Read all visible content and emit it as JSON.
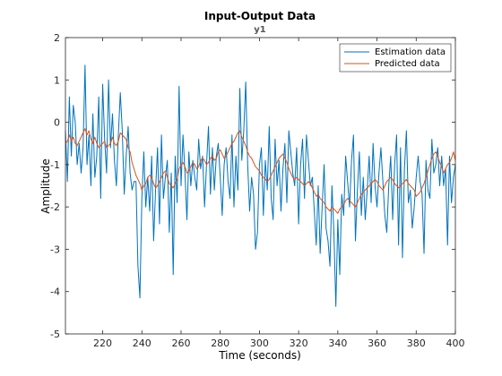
{
  "chart_data": {
    "type": "line",
    "title": "Input-Output Data",
    "subtitle": "y1",
    "xlabel": "Time (seconds)",
    "ylabel": "Amplitude",
    "xlim": [
      201,
      400
    ],
    "ylim": [
      -5,
      2
    ],
    "xticks": [
      220,
      240,
      260,
      280,
      300,
      320,
      340,
      360,
      380,
      400
    ],
    "yticks": [
      -5,
      -4,
      -3,
      -2,
      -1,
      0,
      1,
      2
    ],
    "grid": false,
    "legend_position": "top-right",
    "x": {
      "start": 201,
      "end": 400,
      "step": 1
    },
    "series": [
      {
        "name": "Estimation data",
        "color": "#0072bd",
        "values": [
          -0.2,
          -1.4,
          0.6,
          -0.8,
          0.4,
          0.0,
          -1.0,
          -0.5,
          -1.2,
          -0.6,
          1.35,
          -1.0,
          -0.3,
          -1.5,
          0.2,
          -1.3,
          -0.8,
          0.6,
          -1.8,
          0.9,
          -0.4,
          -1.2,
          1.0,
          -0.6,
          0.2,
          -0.9,
          -1.5,
          -0.3,
          0.7,
          -0.2,
          -1.7,
          -0.8,
          -0.1,
          -1.2,
          -1.6,
          -1.4,
          -1.4,
          -3.4,
          -4.15,
          -1.8,
          -0.7,
          -2.0,
          -1.3,
          -2.1,
          -0.8,
          -2.8,
          -1.6,
          -0.6,
          -2.4,
          -0.3,
          -1.8,
          -1.3,
          -0.9,
          -2.6,
          -1.2,
          -3.6,
          -0.8,
          -1.9,
          0.85,
          -1.5,
          -0.3,
          -1.2,
          -2.3,
          -0.7,
          -1.5,
          -0.9,
          -1.3,
          -1.6,
          -0.4,
          -1.1,
          -0.8,
          -2.0,
          -1.0,
          -0.1,
          -1.7,
          -0.6,
          -1.6,
          -0.8,
          -0.5,
          -1.3,
          -2.2,
          -1.0,
          -0.6,
          -1.4,
          -1.8,
          -0.3,
          -2.0,
          -0.8,
          -1.6,
          0.8,
          -0.9,
          -0.2,
          0.95,
          -1.0,
          -2.1,
          -1.3,
          -1.7,
          -3.0,
          -2.6,
          -1.0,
          -0.6,
          -2.2,
          -0.9,
          -1.6,
          -0.1,
          -1.8,
          -2.3,
          -0.4,
          -1.5,
          -0.9,
          -2.1,
          -1.1,
          -0.5,
          -1.9,
          -0.2,
          -0.7,
          -1.2,
          -1.5,
          -0.6,
          -2.4,
          -1.0,
          -0.4,
          -1.8,
          -0.3,
          -0.9,
          -1.5,
          -1.3,
          -2.1,
          -2.9,
          -1.5,
          -3.1,
          -2.0,
          -1.0,
          -2.5,
          -2.8,
          -3.4,
          -1.5,
          -2.6,
          -4.35,
          -2.3,
          -3.6,
          -1.7,
          -2.2,
          -0.8,
          -1.4,
          -2.0,
          -0.9,
          -0.3,
          -2.8,
          -1.6,
          -0.7,
          -2.2,
          -1.3,
          -2.3,
          -1.6,
          -0.8,
          -1.9,
          -0.5,
          -1.5,
          -2.0,
          -1.2,
          -0.6,
          -1.4,
          -2.2,
          -2.6,
          -1.5,
          -0.8,
          -2.3,
          -1.0,
          -0.3,
          -2.9,
          -0.6,
          -3.2,
          -1.1,
          -0.2,
          -1.9,
          -1.6,
          -2.5,
          -2.0,
          -1.3,
          -0.8,
          -1.4,
          -1.7,
          -3.1,
          -0.9,
          -1.6,
          -1.8,
          -0.4,
          -1.2,
          -1.0,
          -0.6,
          -1.5,
          -0.8,
          -1.5,
          -1.1,
          -2.9,
          -0.8,
          -1.9,
          -1.3,
          -1.0
        ]
      },
      {
        "name": "Predicted data",
        "color": "#d95319",
        "values": [
          -0.5,
          -0.45,
          -0.3,
          -0.45,
          -0.35,
          -0.5,
          -0.55,
          -0.45,
          -0.35,
          -0.25,
          -0.15,
          -0.3,
          -0.2,
          -0.4,
          -0.5,
          -0.35,
          -0.5,
          -0.6,
          -0.55,
          -0.5,
          -0.45,
          -0.6,
          -0.55,
          -0.5,
          -0.35,
          -0.5,
          -0.55,
          -0.45,
          -0.25,
          -0.3,
          -0.35,
          -0.4,
          -0.6,
          -0.7,
          -0.95,
          -1.1,
          -1.25,
          -1.35,
          -1.45,
          -1.6,
          -1.5,
          -1.45,
          -1.3,
          -1.25,
          -1.3,
          -1.45,
          -1.55,
          -1.5,
          -1.4,
          -1.3,
          -1.2,
          -1.15,
          -1.3,
          -1.45,
          -1.5,
          -1.55,
          -1.45,
          -1.35,
          -1.1,
          -1.0,
          -0.95,
          -1.05,
          -1.2,
          -1.15,
          -1.05,
          -0.95,
          -1.0,
          -1.1,
          -1.05,
          -0.9,
          -0.85,
          -0.9,
          -1.0,
          -0.95,
          -0.85,
          -0.8,
          -0.9,
          -0.85,
          -0.7,
          -0.65,
          -0.75,
          -0.85,
          -0.8,
          -0.7,
          -0.6,
          -0.5,
          -0.45,
          -0.35,
          -0.25,
          -0.2,
          -0.35,
          -0.45,
          -0.55,
          -0.7,
          -0.8,
          -0.85,
          -0.95,
          -1.05,
          -1.1,
          -1.15,
          -1.25,
          -1.3,
          -1.35,
          -1.4,
          -1.35,
          -1.25,
          -1.15,
          -1.05,
          -0.95,
          -0.85,
          -0.8,
          -0.75,
          -0.85,
          -0.95,
          -1.1,
          -1.2,
          -1.3,
          -1.35,
          -1.3,
          -1.35,
          -1.4,
          -1.45,
          -1.5,
          -1.45,
          -1.4,
          -1.45,
          -1.55,
          -1.65,
          -1.75,
          -1.7,
          -1.8,
          -1.85,
          -1.9,
          -2.0,
          -2.05,
          -2.1,
          -2.0,
          -2.05,
          -2.1,
          -2.15,
          -2.05,
          -2.0,
          -1.95,
          -1.85,
          -1.8,
          -1.85,
          -1.9,
          -1.95,
          -2.0,
          -1.9,
          -1.8,
          -1.7,
          -1.65,
          -1.6,
          -1.55,
          -1.5,
          -1.45,
          -1.4,
          -1.35,
          -1.4,
          -1.5,
          -1.55,
          -1.6,
          -1.5,
          -1.4,
          -1.35,
          -1.3,
          -1.35,
          -1.45,
          -1.5,
          -1.55,
          -1.5,
          -1.45,
          -1.4,
          -1.35,
          -1.45,
          -1.5,
          -1.55,
          -1.6,
          -1.75,
          -1.7,
          -1.65,
          -1.55,
          -1.45,
          -1.3,
          -1.15,
          -1.0,
          -0.85,
          -0.75,
          -0.7,
          -0.8,
          -0.95,
          -1.05,
          -1.2,
          -1.1,
          -1.0,
          -0.95,
          -0.85,
          -0.7,
          -0.9
        ]
      }
    ]
  }
}
